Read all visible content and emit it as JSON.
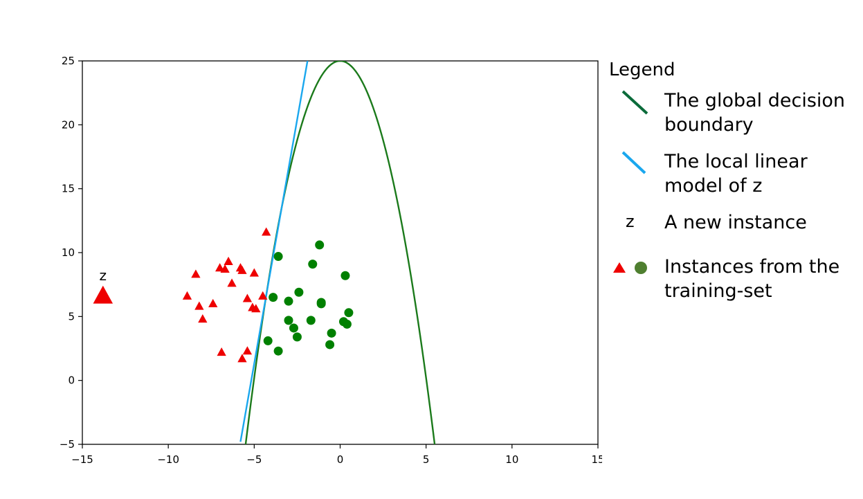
{
  "chart_data": {
    "type": "scatter",
    "title": "",
    "xlabel": "",
    "ylabel": "",
    "xlim": [
      -15,
      15
    ],
    "ylim": [
      -5,
      25
    ],
    "xticks": [
      -15,
      -10,
      -5,
      0,
      5,
      10,
      15
    ],
    "yticks": [
      -5,
      0,
      5,
      10,
      15,
      20,
      25
    ],
    "xtick_labels": [
      "−15",
      "−10",
      "−5",
      "0",
      "5",
      "10",
      "15"
    ],
    "ytick_labels": [
      "−5",
      "0",
      "5",
      "10",
      "15",
      "20",
      "25"
    ],
    "grid": false,
    "colors": {
      "triangle": "#ee0000",
      "circle": "#008000",
      "global_boundary": "#1b7a1b",
      "local_model": "#1aa7ee",
      "legend_boundary": "#0b6b3a",
      "legend_circle": "#4f7f30"
    },
    "series": [
      {
        "name": "",
        "marker": "triangle",
        "points": [
          [
            -4.3,
            11.6
          ],
          [
            -6.5,
            9.3
          ],
          [
            -7.0,
            8.8
          ],
          [
            -6.7,
            8.7
          ],
          [
            -5.8,
            8.8
          ],
          [
            -5.7,
            8.6
          ],
          [
            -5.0,
            8.4
          ],
          [
            -8.4,
            8.3
          ],
          [
            -6.3,
            7.6
          ],
          [
            -8.9,
            6.6
          ],
          [
            -4.5,
            6.6
          ],
          [
            -5.4,
            6.4
          ],
          [
            -7.4,
            6.0
          ],
          [
            -8.2,
            5.8
          ],
          [
            -5.1,
            5.7
          ],
          [
            -4.9,
            5.6
          ],
          [
            -8.0,
            4.8
          ],
          [
            -6.9,
            2.2
          ],
          [
            -5.4,
            2.3
          ],
          [
            -5.7,
            1.7
          ]
        ]
      },
      {
        "name": "",
        "marker": "circle",
        "points": [
          [
            -1.2,
            10.6
          ],
          [
            -3.6,
            9.7
          ],
          [
            -1.6,
            9.1
          ],
          [
            0.3,
            8.2
          ],
          [
            -2.4,
            6.9
          ],
          [
            -3.9,
            6.5
          ],
          [
            -3.0,
            6.2
          ],
          [
            -1.1,
            6.1
          ],
          [
            -1.1,
            6.0
          ],
          [
            0.5,
            5.3
          ],
          [
            -3.0,
            4.7
          ],
          [
            -1.7,
            4.7
          ],
          [
            0.2,
            4.6
          ],
          [
            0.4,
            4.4
          ],
          [
            -2.7,
            4.1
          ],
          [
            -0.5,
            3.7
          ],
          [
            -2.5,
            3.4
          ],
          [
            -4.2,
            3.1
          ],
          [
            -0.6,
            2.8
          ],
          [
            -3.6,
            2.3
          ]
        ]
      },
      {
        "name": "",
        "marker": "triangle-large",
        "points": [
          [
            -13.8,
            6.6
          ]
        ],
        "label": "z"
      }
    ],
    "lines": [
      {
        "name": "",
        "kind": "parabola",
        "x": [
          -5.5,
          5.5
        ],
        "peak_x": 0.0,
        "peak_y": 25.0,
        "y_at_edges": -5.0
      },
      {
        "name": "",
        "kind": "straight",
        "x": [
          -5.8,
          -1.9
        ],
        "y": [
          -4.8,
          25.0
        ]
      }
    ]
  },
  "legend": {
    "title": "Legend",
    "items": [
      {
        "symbol": "boundary-line",
        "text": "The global decision boundary"
      },
      {
        "symbol": "local-line",
        "text": "The local linear model of z"
      },
      {
        "symbol": "z-letter",
        "glyph": "z",
        "text": "A new instance"
      },
      {
        "symbol": "triangle-circle",
        "text": "Instances from the training-set"
      }
    ]
  }
}
